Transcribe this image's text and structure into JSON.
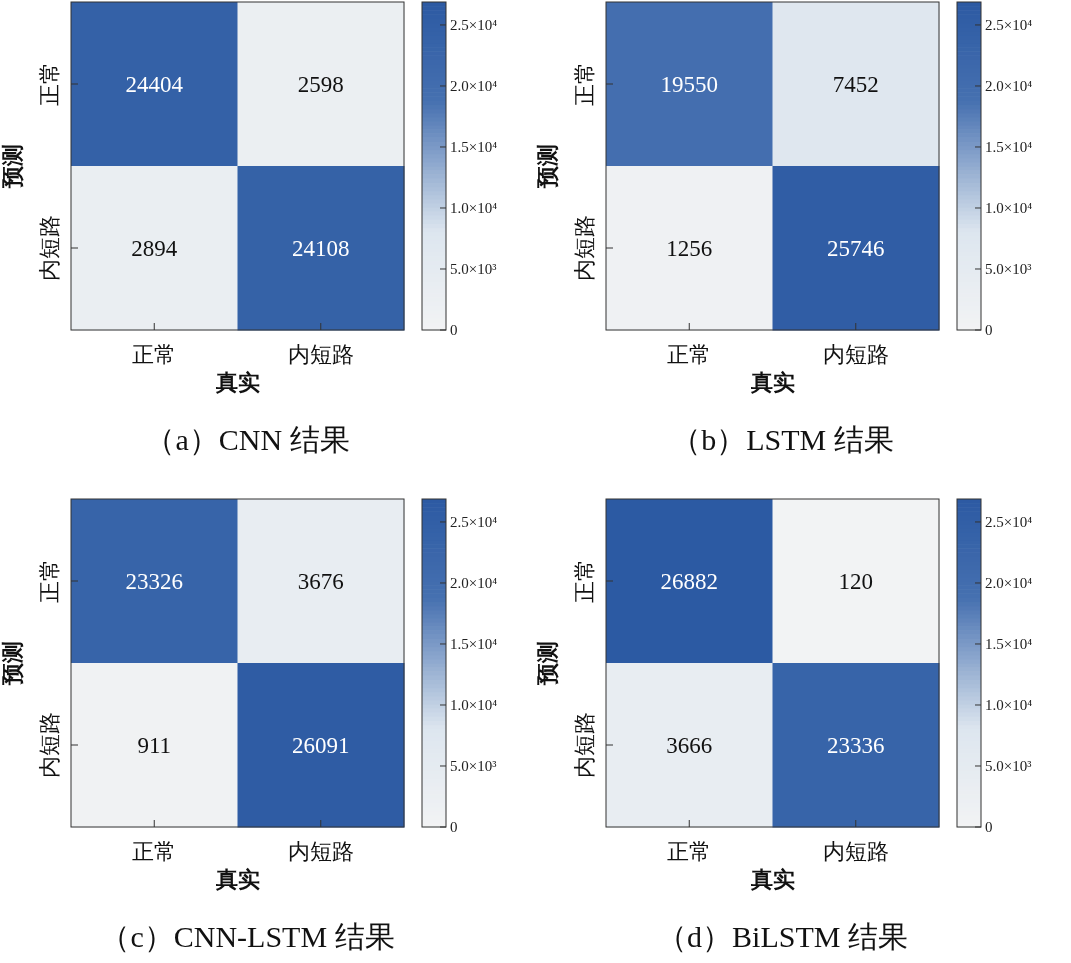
{
  "chart_data": [
    {
      "type": "heatmap",
      "title": "（a）CNN 结果",
      "xlabel": "真实",
      "ylabel": "预测",
      "categories": [
        "正常",
        "内短路"
      ],
      "y_categories": [
        "正常",
        "内短路"
      ],
      "cells": [
        [
          24404,
          2598
        ],
        [
          2894,
          24108
        ]
      ],
      "data_labels": true,
      "clim": [
        0,
        26882
      ],
      "cticks": [
        {
          "value": 0,
          "label": "0"
        },
        {
          "value": 5000,
          "label": "5.0×10³"
        },
        {
          "value": 10000,
          "label": "1.0×10⁴"
        },
        {
          "value": 15000,
          "label": "1.5×10⁴"
        },
        {
          "value": 20000,
          "label": "2.0×10⁴"
        },
        {
          "value": 25000,
          "label": "2.5×10⁴"
        }
      ]
    },
    {
      "type": "heatmap",
      "title": "（b）LSTM 结果",
      "xlabel": "真实",
      "ylabel": "预测",
      "categories": [
        "正常",
        "内短路"
      ],
      "y_categories": [
        "正常",
        "内短路"
      ],
      "cells": [
        [
          19550,
          7452
        ],
        [
          1256,
          25746
        ]
      ],
      "data_labels": true,
      "clim": [
        0,
        26882
      ],
      "cticks": [
        {
          "value": 0,
          "label": "0"
        },
        {
          "value": 5000,
          "label": "5.0×10³"
        },
        {
          "value": 10000,
          "label": "1.0×10⁴"
        },
        {
          "value": 15000,
          "label": "1.5×10⁴"
        },
        {
          "value": 20000,
          "label": "2.0×10⁴"
        },
        {
          "value": 25000,
          "label": "2.5×10⁴"
        }
      ]
    },
    {
      "type": "heatmap",
      "title": "（c）CNN-LSTM 结果",
      "xlabel": "真实",
      "ylabel": "预测",
      "categories": [
        "正常",
        "内短路"
      ],
      "y_categories": [
        "正常",
        "内短路"
      ],
      "cells": [
        [
          23326,
          3676
        ],
        [
          911,
          26091
        ]
      ],
      "data_labels": true,
      "clim": [
        0,
        26882
      ],
      "cticks": [
        {
          "value": 0,
          "label": "0"
        },
        {
          "value": 5000,
          "label": "5.0×10³"
        },
        {
          "value": 10000,
          "label": "1.0×10⁴"
        },
        {
          "value": 15000,
          "label": "1.5×10⁴"
        },
        {
          "value": 20000,
          "label": "2.0×10⁴"
        },
        {
          "value": 25000,
          "label": "2.5×10⁴"
        }
      ]
    },
    {
      "type": "heatmap",
      "title": "（d）BiLSTM 结果",
      "xlabel": "真实",
      "ylabel": "预测",
      "categories": [
        "正常",
        "内短路"
      ],
      "y_categories": [
        "正常",
        "内短路"
      ],
      "cells": [
        [
          26882,
          120
        ],
        [
          3666,
          23336
        ]
      ],
      "data_labels": true,
      "clim": [
        0,
        26882
      ],
      "cticks": [
        {
          "value": 0,
          "label": "0"
        },
        {
          "value": 5000,
          "label": "5.0×10³"
        },
        {
          "value": 10000,
          "label": "1.0×10⁴"
        },
        {
          "value": 15000,
          "label": "1.5×10⁴"
        },
        {
          "value": 20000,
          "label": "2.0×10⁴"
        },
        {
          "value": 25000,
          "label": "2.5×10⁴"
        }
      ]
    }
  ]
}
